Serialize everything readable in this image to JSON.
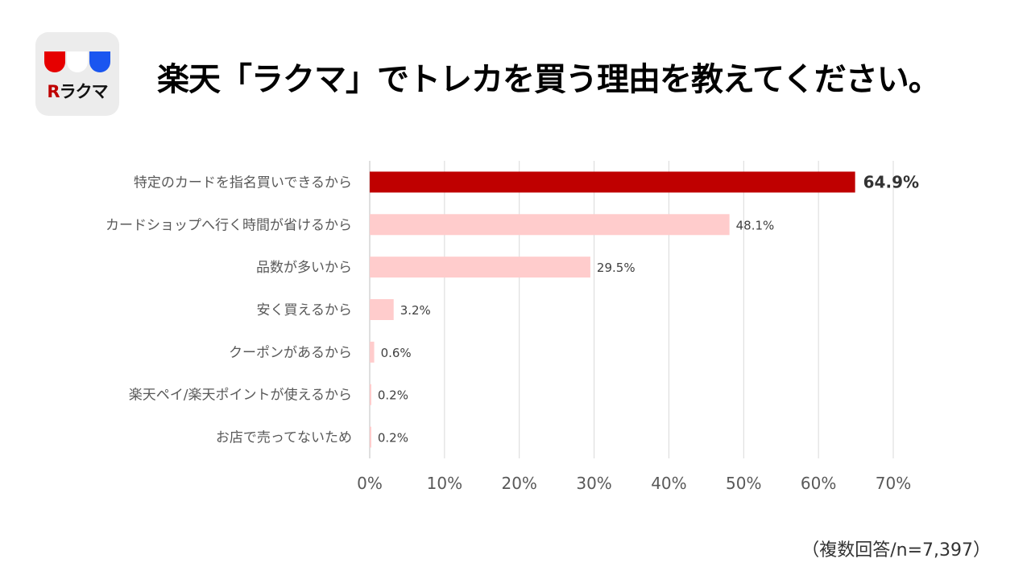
{
  "logo": {
    "text": "ラクマ",
    "r_letter": "R",
    "colors": [
      "#e60000",
      "#ffffff",
      "#1a56f0"
    ]
  },
  "title": "楽天「ラクマ」でトレカを買う理由を教えてください。",
  "note": "（複数回答/n=7,397）",
  "chart_data": {
    "type": "bar",
    "orientation": "horizontal",
    "categories": [
      "特定のカードを指名買いできるから",
      "カードショップへ行く時間が省けるから",
      "品数が多いから",
      "安く買えるから",
      "クーポンがあるから",
      "楽天ペイ/楽天ポイントが使えるから",
      "お店で売ってないため"
    ],
    "values": [
      64.9,
      48.1,
      29.5,
      3.2,
      0.6,
      0.2,
      0.2
    ],
    "data_labels": [
      "64.9%",
      "48.1%",
      "29.5%",
      "3.2%",
      "0.6%",
      "0.2%",
      "0.2%"
    ],
    "xlim": [
      0,
      70
    ],
    "xticks": [
      "0%",
      "10%",
      "20%",
      "30%",
      "40%",
      "50%",
      "60%",
      "70%"
    ],
    "highlight_color": "#bf0000",
    "bar_color": "#ffcccc",
    "grid": true
  }
}
